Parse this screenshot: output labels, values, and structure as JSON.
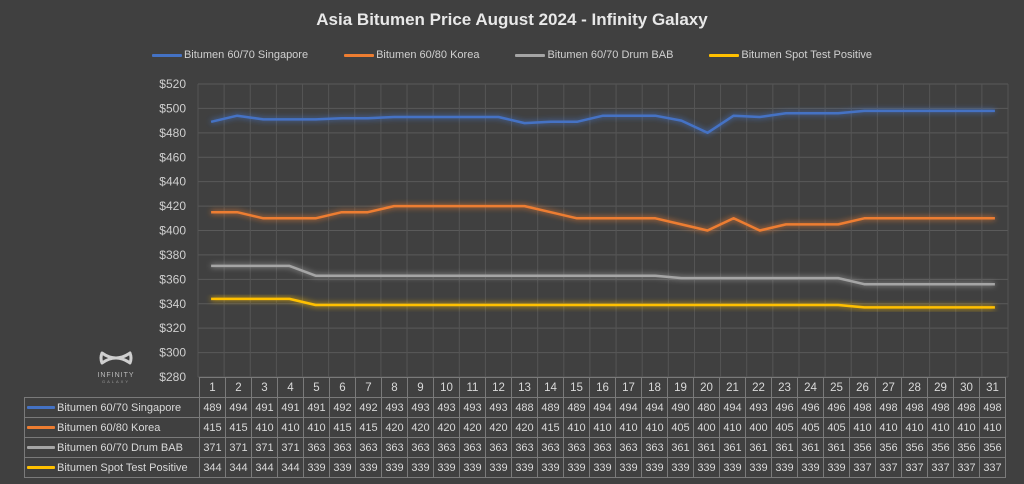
{
  "chart_data": {
    "type": "line",
    "title": "Asia Bitumen Price August 2024 - Infinity Galaxy",
    "xlabel": "",
    "ylabel": "",
    "categories": [
      "1",
      "2",
      "3",
      "4",
      "5",
      "6",
      "7",
      "8",
      "9",
      "10",
      "11",
      "12",
      "13",
      "14",
      "15",
      "16",
      "17",
      "18",
      "19",
      "20",
      "21",
      "22",
      "23",
      "24",
      "25",
      "26",
      "27",
      "28",
      "29",
      "30",
      "31"
    ],
    "ylim": [
      280,
      520
    ],
    "yticks": [
      "$520",
      "$500",
      "$480",
      "$460",
      "$440",
      "$420",
      "$400",
      "$380",
      "$360",
      "$340",
      "$320",
      "$300",
      "$280"
    ],
    "grid": true,
    "legend_position": "top",
    "data_table": true,
    "series": [
      {
        "name": "Bitumen 60/70 Singapore",
        "color": "#4472c4",
        "values": [
          489,
          494,
          491,
          491,
          491,
          492,
          492,
          493,
          493,
          493,
          493,
          493,
          488,
          489,
          489,
          494,
          494,
          494,
          490,
          480,
          494,
          493,
          496,
          496,
          496,
          498,
          498,
          498,
          498,
          498,
          498
        ]
      },
      {
        "name": "Bitumen 60/80 Korea",
        "color": "#ed7d31",
        "values": [
          415,
          415,
          410,
          410,
          410,
          415,
          415,
          420,
          420,
          420,
          420,
          420,
          420,
          415,
          410,
          410,
          410,
          410,
          405,
          400,
          410,
          400,
          405,
          405,
          405,
          410,
          410,
          410,
          410,
          410,
          410
        ]
      },
      {
        "name": "Bitumen 60/70 Drum BAB",
        "color": "#a5a5a5",
        "values": [
          371,
          371,
          371,
          371,
          363,
          363,
          363,
          363,
          363,
          363,
          363,
          363,
          363,
          363,
          363,
          363,
          363,
          363,
          361,
          361,
          361,
          361,
          361,
          361,
          361,
          356,
          356,
          356,
          356,
          356,
          356
        ]
      },
      {
        "name": "Bitumen Spot Test Positive",
        "color": "#ffc000",
        "values": [
          344,
          344,
          344,
          344,
          339,
          339,
          339,
          339,
          339,
          339,
          339,
          339,
          339,
          339,
          339,
          339,
          339,
          339,
          339,
          339,
          339,
          339,
          339,
          339,
          339,
          337,
          337,
          337,
          337,
          337,
          337
        ]
      }
    ]
  },
  "logo": {
    "text": "INFINITY",
    "sub": "GALAXY"
  }
}
